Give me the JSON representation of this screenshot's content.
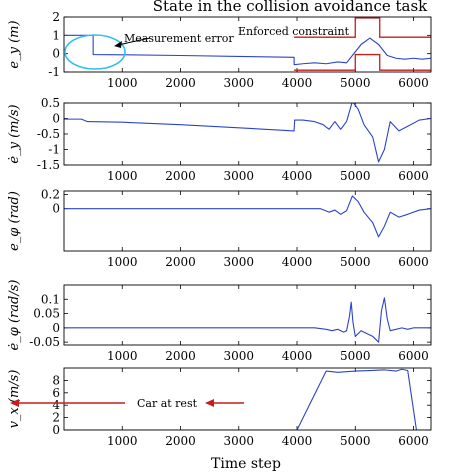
{
  "title": "State in the collision avoidance task",
  "xlabel": "Time step",
  "annotations": {
    "measurement_error": "Measurement error",
    "enforced_constraint": "Enforced constraint",
    "car_at_rest": "Car at rest"
  },
  "colors": {
    "series": "#2b44c8",
    "constraint": "#c41e1e",
    "highlight": "#30c0e8",
    "axis": "#000000"
  },
  "chart_data": [
    {
      "type": "line",
      "ylabel": "e_y (m)",
      "ylim": [
        -1,
        2
      ],
      "yticks": [
        -1,
        0,
        1,
        2
      ],
      "xlim": [
        0,
        6300
      ],
      "xticks": [
        1000,
        2000,
        3000,
        4000,
        5000,
        6000
      ],
      "series": [
        {
          "x": [
            0,
            500,
            501,
            1000,
            2000,
            3000,
            3950,
            3951,
            4100,
            4300,
            4500,
            4700,
            4850,
            4950,
            5100,
            5250,
            5400,
            5550,
            5700,
            5850,
            6000,
            6150,
            6300
          ],
          "y": [
            1.0,
            1.0,
            -0.05,
            -0.06,
            -0.1,
            -0.15,
            -0.2,
            -0.6,
            -0.55,
            -0.5,
            -0.55,
            -0.45,
            -0.5,
            -0.1,
            0.5,
            0.85,
            0.5,
            -0.1,
            -0.25,
            -0.3,
            -0.25,
            -0.3,
            -0.25
          ]
        }
      ],
      "constraints": [
        {
          "name": "upper",
          "x": [
            3950,
            5000,
            5000,
            5420,
            5420,
            6300
          ],
          "y": [
            0.9,
            0.9,
            1.95,
            1.95,
            0.9,
            0.9
          ]
        },
        {
          "name": "lower",
          "x": [
            3950,
            5000,
            5000,
            5420,
            5420,
            6300
          ],
          "y": [
            -0.9,
            -0.9,
            -0.05,
            -0.05,
            -0.9,
            -0.9
          ]
        }
      ]
    },
    {
      "type": "line",
      "ylabel": "ė_y (m/s)",
      "ylim": [
        -1.5,
        0.5
      ],
      "yticks": [
        -1.5,
        -1,
        -0.5,
        0,
        0.5
      ],
      "xlim": [
        0,
        6300
      ],
      "xticks": [
        1000,
        2000,
        3000,
        4000,
        5000,
        6000
      ],
      "series": [
        {
          "x": [
            0,
            300,
            400,
            1000,
            2000,
            3000,
            3950,
            3960,
            4100,
            4300,
            4450,
            4550,
            4650,
            4750,
            4850,
            4950,
            5050,
            5150,
            5300,
            5400,
            5500,
            5600,
            5750,
            5900,
            6100,
            6300
          ],
          "y": [
            -0.02,
            -0.02,
            -0.1,
            -0.12,
            -0.2,
            -0.3,
            -0.4,
            -0.05,
            -0.05,
            -0.1,
            -0.2,
            -0.35,
            -0.1,
            -0.35,
            -0.1,
            0.55,
            0.3,
            -0.2,
            -0.6,
            -1.4,
            -1.0,
            -0.1,
            -0.4,
            -0.25,
            -0.05,
            0.0
          ]
        }
      ]
    },
    {
      "type": "line",
      "ylabel": "e_φ (rad)",
      "ylim": [
        -0.6,
        0.25
      ],
      "yticks": [
        0,
        0.2
      ],
      "xlim": [
        0,
        6300
      ],
      "xticks": [
        1000,
        2000,
        3000,
        4000,
        5000,
        6000
      ],
      "series": [
        {
          "x": [
            0,
            1000,
            2000,
            3000,
            4000,
            4200,
            4400,
            4550,
            4650,
            4750,
            4850,
            4950,
            5050,
            5150,
            5300,
            5400,
            5500,
            5600,
            5750,
            5900,
            6100,
            6300
          ],
          "y": [
            0.0,
            0.0,
            0.0,
            0.0,
            0.0,
            0.0,
            0.0,
            -0.05,
            -0.02,
            -0.08,
            -0.03,
            0.18,
            0.1,
            -0.05,
            -0.2,
            -0.4,
            -0.25,
            -0.05,
            -0.12,
            -0.08,
            -0.02,
            0.0
          ]
        }
      ]
    },
    {
      "type": "line",
      "ylabel": "ė_φ (rad/s)",
      "ylim": [
        -0.06,
        0.15
      ],
      "yticks": [
        -0.05,
        0,
        0.05,
        0.1
      ],
      "xlim": [
        0,
        6300
      ],
      "xticks": [
        1000,
        2000,
        3000,
        4000,
        5000,
        6000
      ],
      "series": [
        {
          "x": [
            0,
            1000,
            2000,
            3000,
            4000,
            4300,
            4500,
            4600,
            4700,
            4800,
            4850,
            4900,
            4930,
            4960,
            5000,
            5100,
            5200,
            5300,
            5400,
            5450,
            5500,
            5550,
            5600,
            5700,
            5800,
            5900,
            6000,
            6100,
            6300
          ],
          "y": [
            0.0,
            0.0,
            0.0,
            0.0,
            0.0,
            0.0,
            -0.005,
            -0.01,
            -0.005,
            -0.015,
            -0.01,
            0.04,
            0.09,
            0.02,
            -0.03,
            -0.01,
            -0.02,
            -0.03,
            -0.05,
            0.06,
            0.105,
            0.03,
            -0.01,
            -0.005,
            0.0,
            -0.005,
            0.0,
            0.0,
            0.0
          ]
        }
      ]
    },
    {
      "type": "line",
      "ylabel": "v_x (m/s)",
      "ylim": [
        0,
        10
      ],
      "yticks": [
        0,
        2,
        4,
        6,
        8
      ],
      "xlim": [
        0,
        6300
      ],
      "xticks": [
        1000,
        2000,
        3000,
        4000,
        5000,
        6000
      ],
      "series": [
        {
          "x": [
            0,
            1000,
            2000,
            3000,
            4000,
            4500,
            4700,
            5000,
            5300,
            5500,
            5700,
            5800,
            5900,
            6050,
            6300
          ],
          "y": [
            0,
            0,
            0,
            0,
            0,
            9.5,
            9.3,
            9.5,
            9.6,
            9.7,
            9.5,
            9.8,
            9.6,
            0,
            0
          ]
        }
      ]
    }
  ]
}
